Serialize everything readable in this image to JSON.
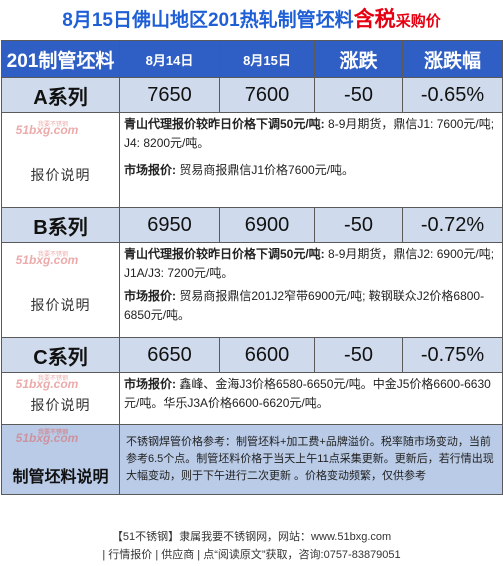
{
  "title": {
    "part1": "8月15日佛山地区201热轧制管坯料",
    "highlight": "含税",
    "part2": "采购价"
  },
  "header": {
    "col1": "201制管坯料",
    "col2": "8月14日",
    "col3": "8月15日",
    "col4": "涨跌",
    "col5": "涨跌幅"
  },
  "watermark": {
    "brand": "51bxg.com",
    "sub": "我要不锈钢"
  },
  "note_label": "报价说明",
  "rows": [
    {
      "name": "A系列",
      "prev": "7650",
      "curr": "7600",
      "change": "-50",
      "pct": "-0.65%",
      "n1_bold": "青山代理报价较昨日价格下调50元/吨:",
      "n1_text": "8-9月期货，鼎信J1: 7600元/吨; J4: 8200元/吨。",
      "n2_bold": "市场报价:",
      "n2_text": "贸易商报鼎信J1价格7600元/吨。"
    },
    {
      "name": "B系列",
      "prev": "6950",
      "curr": "6900",
      "change": "-50",
      "pct": "-0.72%",
      "n1_bold": "青山代理报价较昨日价格下调50元/吨:",
      "n1_text": "8-9月期货，鼎信J2: 6900元/吨; J1A/J3: 7200元/吨。",
      "n2_bold": "市场报价:",
      "n2_text": "贸易商报鼎信201J2窄带6900元/吨; 鞍钢联众J2价格6800-6850元/吨。"
    },
    {
      "name": "C系列",
      "prev": "6650",
      "curr": "6600",
      "change": "-50",
      "pct": "-0.75%",
      "n1_bold": "市场报价:",
      "n1_text": "鑫峰、金海J3价格6580-6650元/吨。中金J5价格6600-6630元/吨。华乐J3A价格6600-6620元/吨。"
    }
  ],
  "footer": {
    "label": "制管坯料说明",
    "text": "不锈钢焊管价格参考：制管坯料+加工费+品牌溢价。税率随市场变动，当前参考6.5个点。制管坯料价格于当天上午11点采集更新。更新后，若行情出现大幅变动，则于下午进行二次更新 。价格变动频繁，仅供参考"
  },
  "bottom": {
    "line1": "【51不锈钢】隶属我要不锈钢网，网站：www.51bxg.com",
    "line2": "| 行情报价 | 供应商 | 点“阅读原文”获取，咨询:0757-83879051"
  }
}
